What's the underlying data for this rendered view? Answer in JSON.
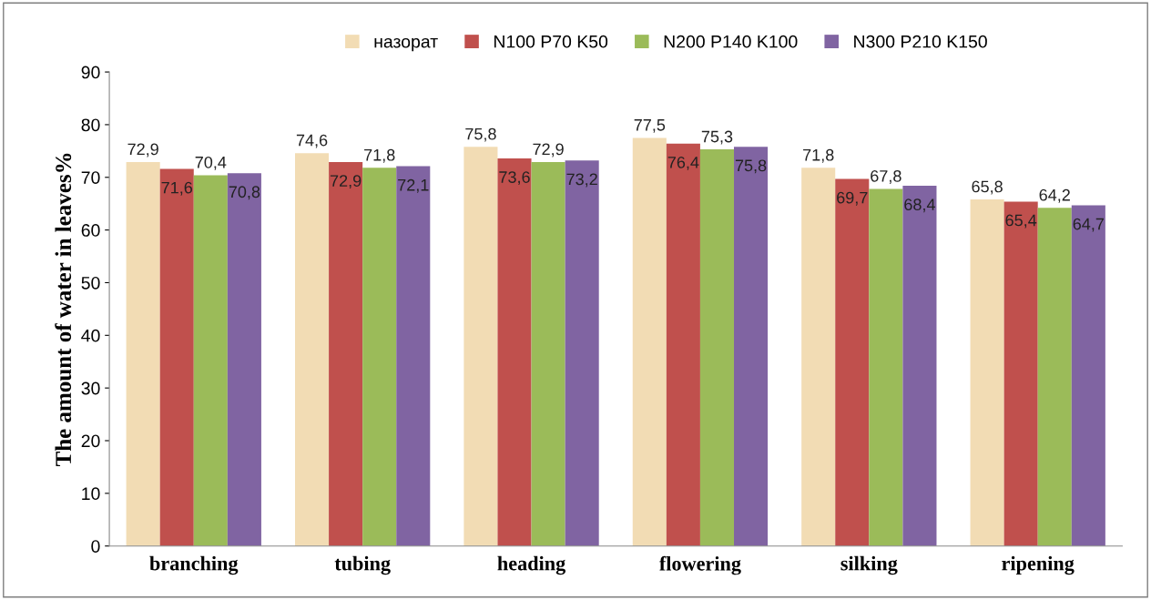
{
  "chart_data": {
    "type": "bar",
    "ylabel": "The amount of water in leaves%",
    "categories": [
      "branching",
      "tubing",
      "heading",
      "flowering",
      "silking",
      "ripening"
    ],
    "series": [
      {
        "name": "назорат",
        "color": "#f2dcb4",
        "values": [
          72.9,
          74.6,
          75.8,
          77.5,
          71.8,
          65.8
        ],
        "value_labels": [
          "72,9",
          "74,6",
          "75,8",
          "77,5",
          "71,8",
          "65,8"
        ]
      },
      {
        "name": "N100 P70 K50",
        "color": "#c0504d",
        "values": [
          71.6,
          72.9,
          73.6,
          76.4,
          69.7,
          65.4
        ],
        "value_labels": [
          "71,6",
          "72,9",
          "73,6",
          "76,4",
          "69,7",
          "65,4"
        ]
      },
      {
        "name": "N200 P140 K100",
        "color": "#9bbb59",
        "values": [
          70.4,
          71.8,
          72.9,
          75.3,
          67.8,
          64.2
        ],
        "value_labels": [
          "70,4",
          "71,8",
          "72,9",
          "75,3",
          "67,8",
          "64,2"
        ]
      },
      {
        "name": "N300 P210 K150",
        "color": "#8064a2",
        "values": [
          70.8,
          72.1,
          73.2,
          75.8,
          68.4,
          64.7
        ],
        "value_labels": [
          "70,8",
          "72,1",
          "73,2",
          "75,8",
          "68,4",
          "64,7"
        ]
      }
    ],
    "ylim": [
      0,
      90
    ],
    "yticks": [
      0,
      10,
      20,
      30,
      40,
      50,
      60,
      70,
      80,
      90
    ],
    "legend": "top",
    "grid": false
  }
}
